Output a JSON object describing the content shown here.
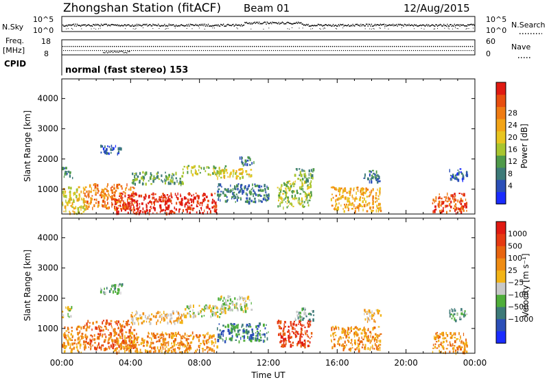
{
  "header": {
    "station_title": "Zhongshan Station (fitACF)",
    "beam": "Beam 01",
    "date": "12/Aug/2015"
  },
  "top_panels": {
    "nsky_label": "N.Sky",
    "nsky_ticks": [
      "10^5",
      "10^0"
    ],
    "nsearch_label": "N.Search",
    "nsearch_ticks": [
      "10^5",
      "10^0"
    ],
    "freq_label": "Freq.",
    "freq_unit": "[MHz]",
    "freq_ticks": [
      "18",
      "8"
    ],
    "nave_label": "Nave",
    "nave_ticks": [
      "60",
      "0"
    ],
    "cpid_label": "CPID",
    "cpid_text": "normal (fast stereo) 153"
  },
  "chart_data": [
    {
      "type": "heatmap",
      "name": "power",
      "ylabel": "Slant Range [km]",
      "xlabel": "Time UT",
      "x_ticks": [
        "00:00",
        "04:00",
        "08:00",
        "12:00",
        "16:00",
        "20:00",
        "00:00"
      ],
      "y_ticks": [
        1000,
        2000,
        3000,
        4000
      ],
      "ylim": [
        180,
        4650
      ],
      "xlim_hours": [
        0,
        24
      ],
      "colorbar": {
        "label": "Power [dB]",
        "ticks": [
          "4",
          "8",
          "12",
          "16",
          "20",
          "24",
          "28"
        ],
        "colors": [
          "#1a2cff",
          "#2b4fb8",
          "#3d7a78",
          "#4f9a4a",
          "#a8c52f",
          "#e8c520",
          "#f2a417",
          "#ef7b13",
          "#e84e0f",
          "#e01a12"
        ]
      },
      "echo_regions": [
        {
          "t0": 0.0,
          "t1": 0.6,
          "r0": 1400,
          "r1": 1750,
          "level": 2
        },
        {
          "t0": 0.0,
          "t1": 1.3,
          "r0": 220,
          "r1": 1100,
          "level": 5
        },
        {
          "t0": 1.3,
          "t1": 4.2,
          "r0": 350,
          "r1": 1200,
          "level": 7
        },
        {
          "t0": 2.2,
          "t1": 3.5,
          "r0": 2200,
          "r1": 2500,
          "level": 1
        },
        {
          "t0": 3.0,
          "t1": 9.0,
          "r0": 220,
          "r1": 900,
          "level": 9
        },
        {
          "t0": 4.0,
          "t1": 7.0,
          "r0": 1200,
          "r1": 1600,
          "level": 3
        },
        {
          "t0": 7.0,
          "t1": 9.5,
          "r0": 1500,
          "r1": 1800,
          "level": 4
        },
        {
          "t0": 9.0,
          "t1": 11.0,
          "r0": 1400,
          "r1": 1700,
          "level": 5
        },
        {
          "t0": 10.3,
          "t1": 11.2,
          "r0": 1800,
          "r1": 2100,
          "level": 2
        },
        {
          "t0": 9.0,
          "t1": 12.0,
          "r0": 600,
          "r1": 1200,
          "level": 2
        },
        {
          "t0": 12.5,
          "t1": 14.5,
          "r0": 400,
          "r1": 1300,
          "level": 4
        },
        {
          "t0": 13.5,
          "t1": 14.6,
          "r0": 1300,
          "r1": 1700,
          "level": 3
        },
        {
          "t0": 15.6,
          "t1": 18.5,
          "r0": 300,
          "r1": 1100,
          "level": 6
        },
        {
          "t0": 17.5,
          "t1": 18.5,
          "r0": 1250,
          "r1": 1650,
          "level": 2
        },
        {
          "t0": 21.5,
          "t1": 23.5,
          "r0": 220,
          "r1": 900,
          "level": 8
        },
        {
          "t0": 22.5,
          "t1": 23.5,
          "r0": 1300,
          "r1": 1700,
          "level": 1
        }
      ]
    },
    {
      "type": "heatmap",
      "name": "velocity",
      "ylabel": "Slant Range [km]",
      "xlabel": "Time UT",
      "x_ticks": [
        "00:00",
        "04:00",
        "08:00",
        "12:00",
        "16:00",
        "20:00",
        "00:00"
      ],
      "y_ticks": [
        1000,
        2000,
        3000,
        4000
      ],
      "ylim": [
        180,
        4650
      ],
      "xlim_hours": [
        0,
        24
      ],
      "colorbar": {
        "label": "Velocity [m s⁻¹]",
        "ticks": [
          "1000",
          "500",
          "100",
          "25",
          "−25",
          "−100",
          "−500",
          "−1000"
        ],
        "colors": [
          "#1a2cff",
          "#2b4fb8",
          "#3d7a78",
          "#4fae3a",
          "#c8c8c8",
          "#f2b417",
          "#ef8c13",
          "#e8640f",
          "#e63a12",
          "#e01a12"
        ]
      },
      "echo_regions": [
        {
          "t0": 0.0,
          "t1": 0.6,
          "r0": 1400,
          "r1": 1750,
          "level": 4
        },
        {
          "t0": 0.0,
          "t1": 1.3,
          "r0": 220,
          "r1": 1100,
          "level": 6
        },
        {
          "t0": 1.3,
          "t1": 4.2,
          "r0": 350,
          "r1": 1300,
          "level": 7
        },
        {
          "t0": 2.2,
          "t1": 3.5,
          "r0": 2200,
          "r1": 2500,
          "level": 3
        },
        {
          "t0": 3.0,
          "t1": 9.0,
          "r0": 220,
          "r1": 900,
          "level": 6
        },
        {
          "t0": 4.0,
          "t1": 7.0,
          "r0": 1200,
          "r1": 1600,
          "level": 5
        },
        {
          "t0": 7.0,
          "t1": 9.5,
          "r0": 1400,
          "r1": 1800,
          "level": 4
        },
        {
          "t0": 9.0,
          "t1": 11.0,
          "r0": 1600,
          "r1": 2100,
          "level": 4
        },
        {
          "t0": 9.0,
          "t1": 12.0,
          "r0": 600,
          "r1": 1200,
          "level": 2
        },
        {
          "t0": 12.5,
          "t1": 14.5,
          "r0": 400,
          "r1": 1300,
          "level": 8
        },
        {
          "t0": 13.5,
          "t1": 14.6,
          "r0": 1300,
          "r1": 1700,
          "level": 3
        },
        {
          "t0": 15.6,
          "t1": 18.5,
          "r0": 300,
          "r1": 1100,
          "level": 6
        },
        {
          "t0": 17.5,
          "t1": 18.5,
          "r0": 1250,
          "r1": 1650,
          "level": 5
        },
        {
          "t0": 21.5,
          "t1": 23.5,
          "r0": 220,
          "r1": 900,
          "level": 6
        },
        {
          "t0": 22.5,
          "t1": 23.5,
          "r0": 1300,
          "r1": 1700,
          "level": 3
        }
      ]
    }
  ]
}
